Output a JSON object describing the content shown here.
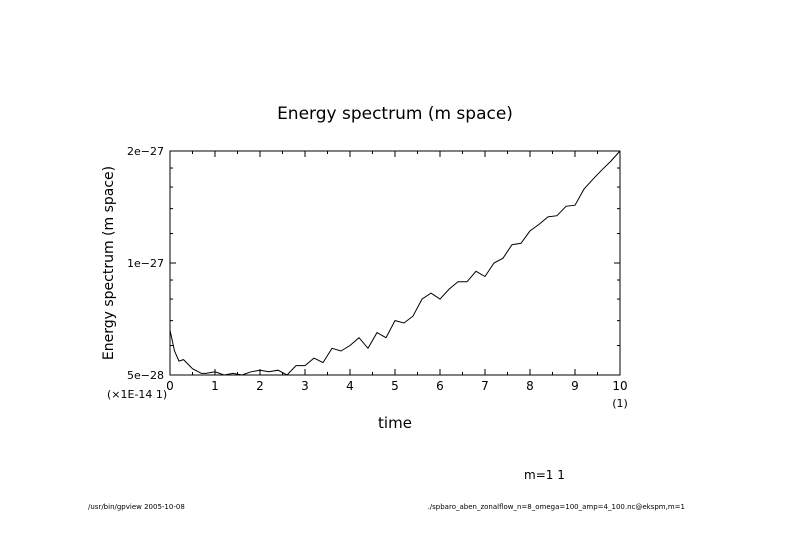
{
  "chart_data": {
    "type": "line",
    "title": "Energy spectrum (m space)",
    "xlabel": "time",
    "ylabel": "Energy spectrum (m space)",
    "x_scale_note": "(×1E-14 1)",
    "x_unit_note": "(1)",
    "xlim": [
      0,
      10
    ],
    "ylim": [
      5e-28,
      2e-27
    ],
    "y_scale": "log",
    "x_ticks": [
      0,
      1,
      2,
      3,
      4,
      5,
      6,
      7,
      8,
      9,
      10
    ],
    "x_tick_labels": [
      "0",
      "1",
      "2",
      "3",
      "4",
      "5",
      "6",
      "7",
      "8",
      "9",
      "10"
    ],
    "y_ticks": [
      5e-28,
      1e-27,
      2e-27
    ],
    "y_tick_labels": [
      "5e−28",
      "1e−27",
      "2e−27"
    ],
    "legend": "m=1 1",
    "series": [
      {
        "name": "m=1 1",
        "x": [
          0,
          0.1,
          0.2,
          0.3,
          0.5,
          0.7,
          0.8,
          1.0,
          1.2,
          1.4,
          1.6,
          1.8,
          2.0,
          2.2,
          2.4,
          2.6,
          2.8,
          3.0,
          3.2,
          3.4,
          3.6,
          3.8,
          4.0,
          4.2,
          4.4,
          4.6,
          4.8,
          5.0,
          5.2,
          5.4,
          5.6,
          5.8,
          6.0,
          6.2,
          6.4,
          6.6,
          6.8,
          7.0,
          7.2,
          7.4,
          7.6,
          7.8,
          8.0,
          8.2,
          8.4,
          8.6,
          8.8,
          9.0,
          9.2,
          9.4,
          9.6,
          9.8,
          10.0
        ],
        "y": [
          6.6e-28,
          5.8e-28,
          5.45e-28,
          5.5e-28,
          5.2e-28,
          5.05e-28,
          5.05e-28,
          5.1e-28,
          5e-28,
          5.05e-28,
          5e-28,
          5.1e-28,
          5.15e-28,
          5.1e-28,
          5.15e-28,
          4.95e-28,
          5.3e-28,
          5.3e-28,
          5.55e-28,
          5.4e-28,
          5.9e-28,
          5.8e-28,
          6e-28,
          6.3e-28,
          5.9e-28,
          6.5e-28,
          6.3e-28,
          7e-28,
          6.9e-28,
          7.2e-28,
          8e-28,
          8.3e-28,
          8e-28,
          8.5e-28,
          8.9e-28,
          8.9e-28,
          9.5e-28,
          9.2e-28,
          1e-27,
          1.03e-27,
          1.12e-27,
          1.13e-27,
          1.22e-27,
          1.27e-27,
          1.33e-27,
          1.34e-27,
          1.42e-27,
          1.43e-27,
          1.58e-27,
          1.68e-27,
          1.78e-27,
          1.88e-27,
          2e-27
        ]
      }
    ]
  },
  "footer": {
    "left": "/usr/bin/gpview  2005-10-08",
    "right": "./spbaro_aben_zonalflow_n=8_omega=100_amp=4_100.nc@ekspm,m=1"
  }
}
